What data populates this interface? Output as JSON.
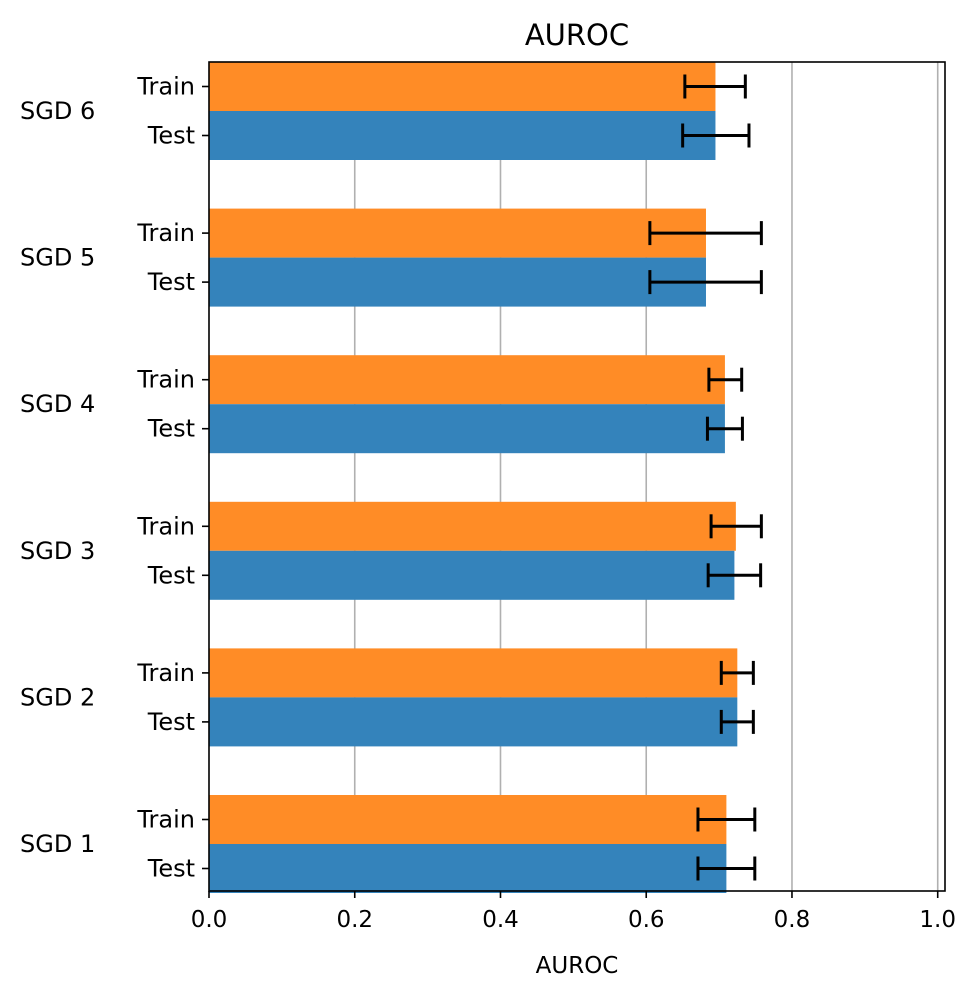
{
  "chart_data": {
    "type": "bar",
    "orientation": "horizontal",
    "title": "AUROC",
    "xlabel": "AUROC",
    "ylabel": "",
    "xlim": [
      0.0,
      1.01
    ],
    "xticks": [
      "0.0",
      "0.2",
      "0.4",
      "0.6",
      "0.8",
      "1.0"
    ],
    "grid": "vertical",
    "legend": "none",
    "colors": {
      "Train": "#ff8c26",
      "Test": "#3483bb"
    },
    "groups": [
      {
        "label": "SGD 6",
        "bars": [
          {
            "name": "Train",
            "value": 0.695,
            "err_low": 0.653,
            "err_high": 0.736
          },
          {
            "name": "Test",
            "value": 0.695,
            "err_low": 0.65,
            "err_high": 0.741
          }
        ]
      },
      {
        "label": "SGD 5",
        "bars": [
          {
            "name": "Train",
            "value": 0.682,
            "err_low": 0.605,
            "err_high": 0.758
          },
          {
            "name": "Test",
            "value": 0.682,
            "err_low": 0.605,
            "err_high": 0.758
          }
        ]
      },
      {
        "label": "SGD 4",
        "bars": [
          {
            "name": "Train",
            "value": 0.708,
            "err_low": 0.686,
            "err_high": 0.731
          },
          {
            "name": "Test",
            "value": 0.708,
            "err_low": 0.684,
            "err_high": 0.732
          }
        ]
      },
      {
        "label": "SGD 3",
        "bars": [
          {
            "name": "Train",
            "value": 0.723,
            "err_low": 0.689,
            "err_high": 0.758
          },
          {
            "name": "Test",
            "value": 0.721,
            "err_low": 0.685,
            "err_high": 0.757
          }
        ]
      },
      {
        "label": "SGD 2",
        "bars": [
          {
            "name": "Train",
            "value": 0.725,
            "err_low": 0.703,
            "err_high": 0.747
          },
          {
            "name": "Test",
            "value": 0.725,
            "err_low": 0.703,
            "err_high": 0.747
          }
        ]
      },
      {
        "label": "SGD 1",
        "bars": [
          {
            "name": "Train",
            "value": 0.71,
            "err_low": 0.671,
            "err_high": 0.749
          },
          {
            "name": "Test",
            "value": 0.71,
            "err_low": 0.671,
            "err_high": 0.749
          }
        ]
      }
    ]
  }
}
